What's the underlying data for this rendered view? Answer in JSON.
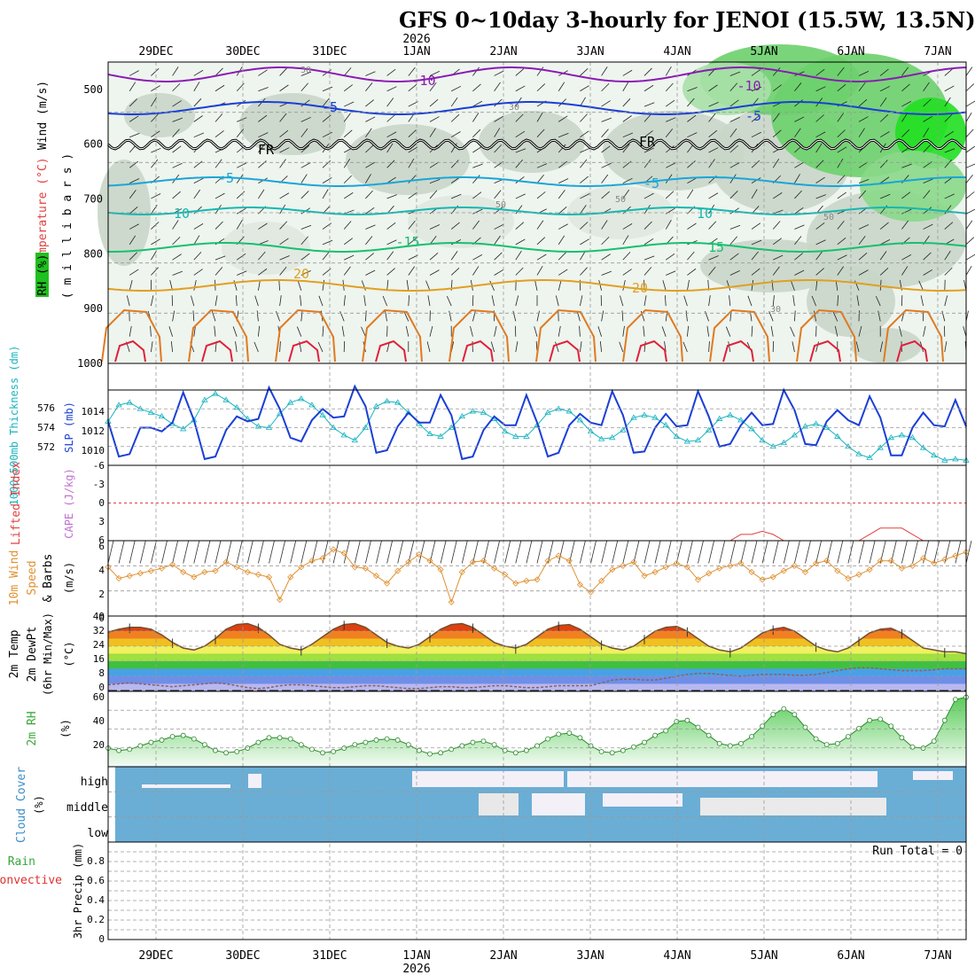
{
  "header": {
    "title": "GFS 0~10day 3-hourly for JENOI (15.5W, 13.5N)"
  },
  "time_axis": {
    "year_label": "2026",
    "dates": [
      "29DEC",
      "30DEC",
      "31DEC",
      "1JAN",
      "2JAN",
      "3JAN",
      "4JAN",
      "5JAN",
      "6JAN",
      "7JAN"
    ]
  },
  "colors": {
    "purple": "#8a1bb4",
    "blue": "#1a3fd6",
    "cyan": "#18a6d8",
    "teal": "#14b8b0",
    "green": "#16c070",
    "orange": "#e0a020",
    "darkorange": "#e07a20",
    "red": "#e0203a",
    "cloud": "#6aaed6",
    "rh_green": "#3aa83a",
    "wind_orange": "#e09030",
    "lifted_red": "#e04040",
    "cape_purple": "#c070d0"
  },
  "panels": {
    "upper": {
      "ylabel_rh": "RH (%)",
      "ylabel_temp": "Temperature (°C)",
      "ylabel_wind": "Wind (m/s)",
      "ylabel_mb": "( m i l l i b a r s )",
      "yticks": [
        "500",
        "600",
        "700",
        "800",
        "900",
        "1000"
      ],
      "contour_labels": [
        "-10",
        "-10",
        "-5",
        "-5",
        "FR",
        "FR",
        "-5",
        "-5",
        "10",
        "10",
        "-15",
        "15",
        "20",
        "20",
        "30",
        "30",
        "30",
        "50",
        "50",
        "50"
      ]
    },
    "slp": {
      "ylabel_a": "1000~500mb Thickness (dm)",
      "ylabel_b": "SLP (mb)",
      "ticks_thk": [
        "576",
        "574",
        "572"
      ],
      "ticks_slp": [
        "1014",
        "1012",
        "1010"
      ]
    },
    "li": {
      "ylabel_a": "Lifted Index",
      "ylabel_b": "CAPE (J/kg)",
      "ticks": [
        "-6",
        "-3",
        "0",
        "3",
        "6"
      ]
    },
    "wind10": {
      "ylabel_a": "10m Wind",
      "ylabel_b": "Speed",
      "ylabel_c": "& Barbs",
      "ylabel_d": "(m/s)",
      "ticks": [
        "6",
        "4",
        "2",
        "0"
      ]
    },
    "temp2m": {
      "ylabel_a": "2m Temp",
      "ylabel_b": "2m DewPt",
      "ylabel_c": "(6hr Min/Max)",
      "ylabel_d": "(°C)",
      "ticks": [
        "40",
        "32",
        "24",
        "16",
        "8",
        "0"
      ]
    },
    "rh2m": {
      "ylabel_a": "2m RH",
      "ylabel_b": "(%)",
      "ticks": [
        "60",
        "40",
        "20"
      ]
    },
    "cloud": {
      "ylabel_a": "Cloud Cover",
      "ylabel_b": "(%)",
      "levels": [
        "high",
        "middle",
        "low"
      ]
    },
    "precip": {
      "ylabel_a": "Total / Rain",
      "ylabel_b": "Convective",
      "ylabel_c": "3hr Precip (mm)",
      "ticks": [
        "0.8",
        "0.6",
        "0.4",
        "0.2",
        "0"
      ],
      "run_total": "Run Total = 0"
    }
  },
  "chart_data": [
    {
      "type": "line",
      "title": "SLP and 1000~500mb Thickness",
      "x_units": "3-hourly steps from 28DEC 12Z",
      "series": [
        {
          "name": "SLP (mb)",
          "color": "#1a3fd6",
          "values": [
            1012.5,
            1009.7,
            1009.9,
            1012.0,
            1012.0,
            1011.7,
            1012.4,
            1014.8,
            1012.6,
            1009.5,
            1009.7,
            1011.8,
            1012.9,
            1012.5,
            1012.7,
            1015.2,
            1013.5,
            1011.2,
            1010.9,
            1012.6,
            1013.5,
            1012.8,
            1012.9,
            1015.3,
            1013.7,
            1010.0,
            1010.2,
            1012.1,
            1013.2,
            1012.4,
            1012.4,
            1014.6,
            1013.0,
            1009.5,
            1009.7,
            1011.8,
            1012.9,
            1012.2,
            1012.2,
            1014.6,
            1012.4,
            1009.7,
            1010.0,
            1012.2,
            1013.1,
            1012.4,
            1012.2,
            1014.9,
            1013.0,
            1010.0,
            1010.1,
            1012.0,
            1013.1,
            1012.1,
            1012.2,
            1014.9,
            1012.9,
            1010.5,
            1010.7,
            1012.2,
            1013.2,
            1012.2,
            1012.3,
            1015.0,
            1013.4,
            1010.7,
            1010.6,
            1012.5,
            1013.4,
            1012.6,
            1012.2,
            1014.5,
            1012.8,
            1009.8,
            1009.8,
            1012.0,
            1013.2,
            1012.2,
            1012.1,
            1014.2,
            1012.1
          ]
        },
        {
          "name": "Thickness (dm)",
          "color": "#18b4c0",
          "values": [
            574.5,
            575.8,
            576.0,
            575.5,
            575.2,
            574.9,
            574.3,
            573.9,
            574.6,
            576.2,
            576.7,
            576.2,
            575.6,
            574.7,
            574.1,
            574.0,
            575.1,
            576.0,
            576.3,
            575.8,
            575.0,
            574.0,
            573.4,
            573.0,
            574.0,
            575.7,
            576.1,
            576.0,
            575.2,
            574.3,
            573.5,
            573.3,
            574.0,
            574.9,
            575.3,
            575.2,
            574.7,
            573.7,
            573.3,
            573.3,
            574.2,
            575.2,
            575.5,
            575.3,
            574.6,
            573.7,
            573.1,
            573.2,
            573.8,
            574.8,
            575.0,
            574.8,
            574.2,
            573.3,
            572.9,
            573.0,
            573.8,
            574.7,
            575.0,
            574.6,
            573.9,
            573.0,
            572.5,
            572.8,
            573.4,
            574.1,
            574.3,
            574.0,
            573.3,
            572.5,
            571.9,
            571.6,
            572.4,
            573.2,
            573.4,
            573.2,
            572.4,
            571.8,
            571.4,
            571.5,
            571.4
          ]
        }
      ],
      "ylim_left": [
        1009,
        1015
      ],
      "ylim_right": [
        571,
        577
      ]
    },
    {
      "type": "line",
      "title": "10m Wind Speed",
      "ylabel": "m/s",
      "ylim": [
        0,
        6
      ],
      "values": [
        3.9,
        3.0,
        3.2,
        3.4,
        3.6,
        3.8,
        4.1,
        3.5,
        3.1,
        3.5,
        3.6,
        4.3,
        3.9,
        3.5,
        3.3,
        3.1,
        1.3,
        3.1,
        3.9,
        4.4,
        4.6,
        5.3,
        5.0,
        3.9,
        3.8,
        3.2,
        2.6,
        3.6,
        4.3,
        4.9,
        4.4,
        3.7,
        1.1,
        3.5,
        4.3,
        4.4,
        3.8,
        3.3,
        2.6,
        2.8,
        2.9,
        4.4,
        4.8,
        4.4,
        2.5,
        1.9,
        2.8,
        3.7,
        4.0,
        4.3,
        3.2,
        3.5,
        3.9,
        4.2,
        3.9,
        2.9,
        3.4,
        3.8,
        4.0,
        4.2,
        3.5,
        2.9,
        3.1,
        3.6,
        4.0,
        3.5,
        4.2,
        4.4,
        3.6,
        3.0,
        3.3,
        3.7,
        4.4,
        4.4,
        3.8,
        4.0,
        4.6,
        4.2,
        4.5,
        4.8,
        5.1
      ]
    },
    {
      "type": "area",
      "title": "2m Temperature and DewPoint",
      "ylabel": "°C",
      "ylim": [
        0,
        40
      ],
      "series": [
        {
          "name": "2m Temp",
          "color": "#806040",
          "values": [
            31.5,
            33,
            34,
            34,
            33,
            30,
            26,
            23,
            22,
            24,
            28,
            33,
            35.5,
            36,
            34,
            30,
            25,
            23,
            22,
            25,
            29,
            33,
            35.5,
            36,
            34,
            30,
            26,
            24,
            23,
            25,
            29,
            33,
            35.5,
            36,
            34,
            30,
            26,
            24,
            23,
            25,
            29,
            33,
            35,
            35.5,
            33,
            29,
            25,
            23,
            22,
            24,
            28,
            32,
            34,
            34.5,
            32,
            28,
            24,
            22,
            21,
            23,
            27,
            31,
            33,
            34,
            32,
            28,
            24,
            22,
            21,
            23,
            27,
            31,
            33,
            33.5,
            31,
            27,
            23,
            22,
            21,
            21,
            20
          ]
        },
        {
          "name": "2m DewPt",
          "color": "#a06060",
          "values": [
            3.5,
            4,
            4.5,
            4,
            3.5,
            3,
            2.5,
            3,
            3.5,
            4,
            4.5,
            4,
            3,
            2,
            1.5,
            2,
            3,
            3.5,
            3.5,
            3,
            2.5,
            2,
            2,
            2.5,
            3,
            3,
            2.5,
            2,
            1.5,
            1.5,
            2,
            2.5,
            2.5,
            2,
            2,
            2.5,
            3,
            3,
            2.5,
            2,
            2,
            2.5,
            3,
            3,
            3,
            3,
            4.5,
            6,
            6.5,
            6.5,
            6,
            6,
            7,
            8,
            9,
            9.5,
            9.5,
            9,
            8.5,
            8,
            8.5,
            9,
            9,
            9,
            8.5,
            8.5,
            9,
            10,
            11,
            12,
            12.5,
            12.5,
            12,
            11.5,
            11,
            11,
            11,
            11.5,
            12,
            12,
            12
          ]
        }
      ]
    },
    {
      "type": "area",
      "title": "2m RH",
      "ylabel": "%",
      "ylim": [
        0,
        65
      ],
      "values": [
        16,
        14,
        15,
        18,
        21,
        23,
        26,
        27,
        24,
        19,
        14,
        12,
        13,
        16,
        21,
        25,
        25,
        24,
        19,
        15,
        12,
        13,
        16,
        19,
        21,
        23,
        24,
        23,
        19,
        14,
        11,
        12,
        15,
        18,
        21,
        22,
        19,
        14,
        12,
        14,
        18,
        24,
        28,
        29,
        25,
        18,
        13,
        12,
        14,
        17,
        21,
        27,
        31,
        39,
        40,
        34,
        27,
        20,
        18,
        20,
        26,
        35,
        45,
        50,
        45,
        34,
        24,
        19,
        20,
        26,
        33,
        40,
        41,
        35,
        25,
        17,
        16,
        22,
        40,
        58,
        60
      ]
    },
    {
      "type": "line",
      "title": "Lifted Index",
      "ylim": [
        -6,
        6
      ],
      "ylabel": "",
      "values": [
        6,
        6,
        6,
        6,
        6,
        6,
        6,
        6,
        6,
        6,
        6,
        6,
        6,
        6,
        6,
        6,
        6,
        6,
        6,
        6,
        6,
        6,
        6,
        6,
        6,
        6,
        6,
        6,
        6,
        6,
        6,
        6,
        6,
        6,
        6,
        6,
        6,
        6,
        6,
        6,
        6,
        6,
        6,
        6,
        6,
        6,
        6,
        6,
        6,
        6,
        6,
        6,
        6,
        6,
        6,
        6,
        6,
        6,
        6,
        5,
        5,
        4.5,
        5,
        6,
        6,
        6,
        6,
        6,
        6,
        6,
        6,
        5,
        4,
        4,
        4,
        5,
        6,
        6,
        6,
        6,
        6
      ]
    },
    {
      "type": "table",
      "title": "3hr Precip",
      "ylabel": "mm",
      "ylim": [
        0,
        1
      ],
      "values": [
        0
      ]
    }
  ]
}
